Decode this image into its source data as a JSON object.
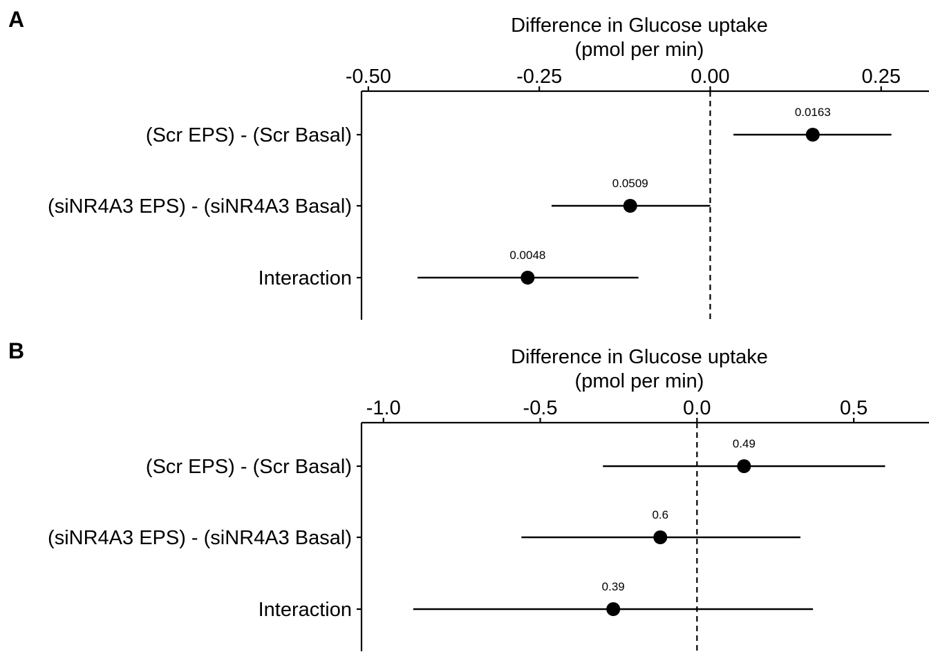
{
  "chart_data": [
    {
      "type": "scatter",
      "panel_label": "A",
      "xlabel_line1": "Difference in Glucose uptake",
      "xlabel_line2": "(pmol per min)",
      "xlim": [
        -0.51,
        0.32
      ],
      "xticks": [
        -0.5,
        -0.25,
        0.0,
        0.25
      ],
      "xtick_labels": [
        "-0.50",
        "-0.25",
        "0.00",
        "0.25"
      ],
      "reference_line": 0.0,
      "categories": [
        "(Scr EPS) - (Scr Basal)",
        "(siNR4A3 EPS) - (siNR4A3 Basal)",
        "Interaction"
      ],
      "estimates": [
        0.15,
        -0.117,
        -0.267
      ],
      "ci_low": [
        0.034,
        -0.232,
        -0.428
      ],
      "ci_high": [
        0.265,
        0.0,
        -0.105
      ],
      "p_value_labels": [
        "0.0163",
        "0.0509",
        "0.0048"
      ]
    },
    {
      "type": "scatter",
      "panel_label": "B",
      "xlabel_line1": "Difference in Glucose uptake",
      "xlabel_line2": "(pmol per min)",
      "xlim": [
        -1.07,
        0.74
      ],
      "xticks": [
        -1.0,
        -0.5,
        0.0,
        0.5
      ],
      "xtick_labels": [
        "-1.0",
        "-0.5",
        "0.0",
        "0.5"
      ],
      "reference_line": 0.0,
      "categories": [
        "(Scr EPS) - (Scr Basal)",
        "(siNR4A3 EPS) - (siNR4A3 Basal)",
        "Interaction"
      ],
      "estimates": [
        0.15,
        -0.117,
        -0.267
      ],
      "ci_low": [
        -0.3,
        -0.56,
        -0.905
      ],
      "ci_high": [
        0.6,
        0.33,
        0.37
      ],
      "p_value_labels": [
        "0.49",
        "0.6",
        "0.39"
      ]
    }
  ]
}
